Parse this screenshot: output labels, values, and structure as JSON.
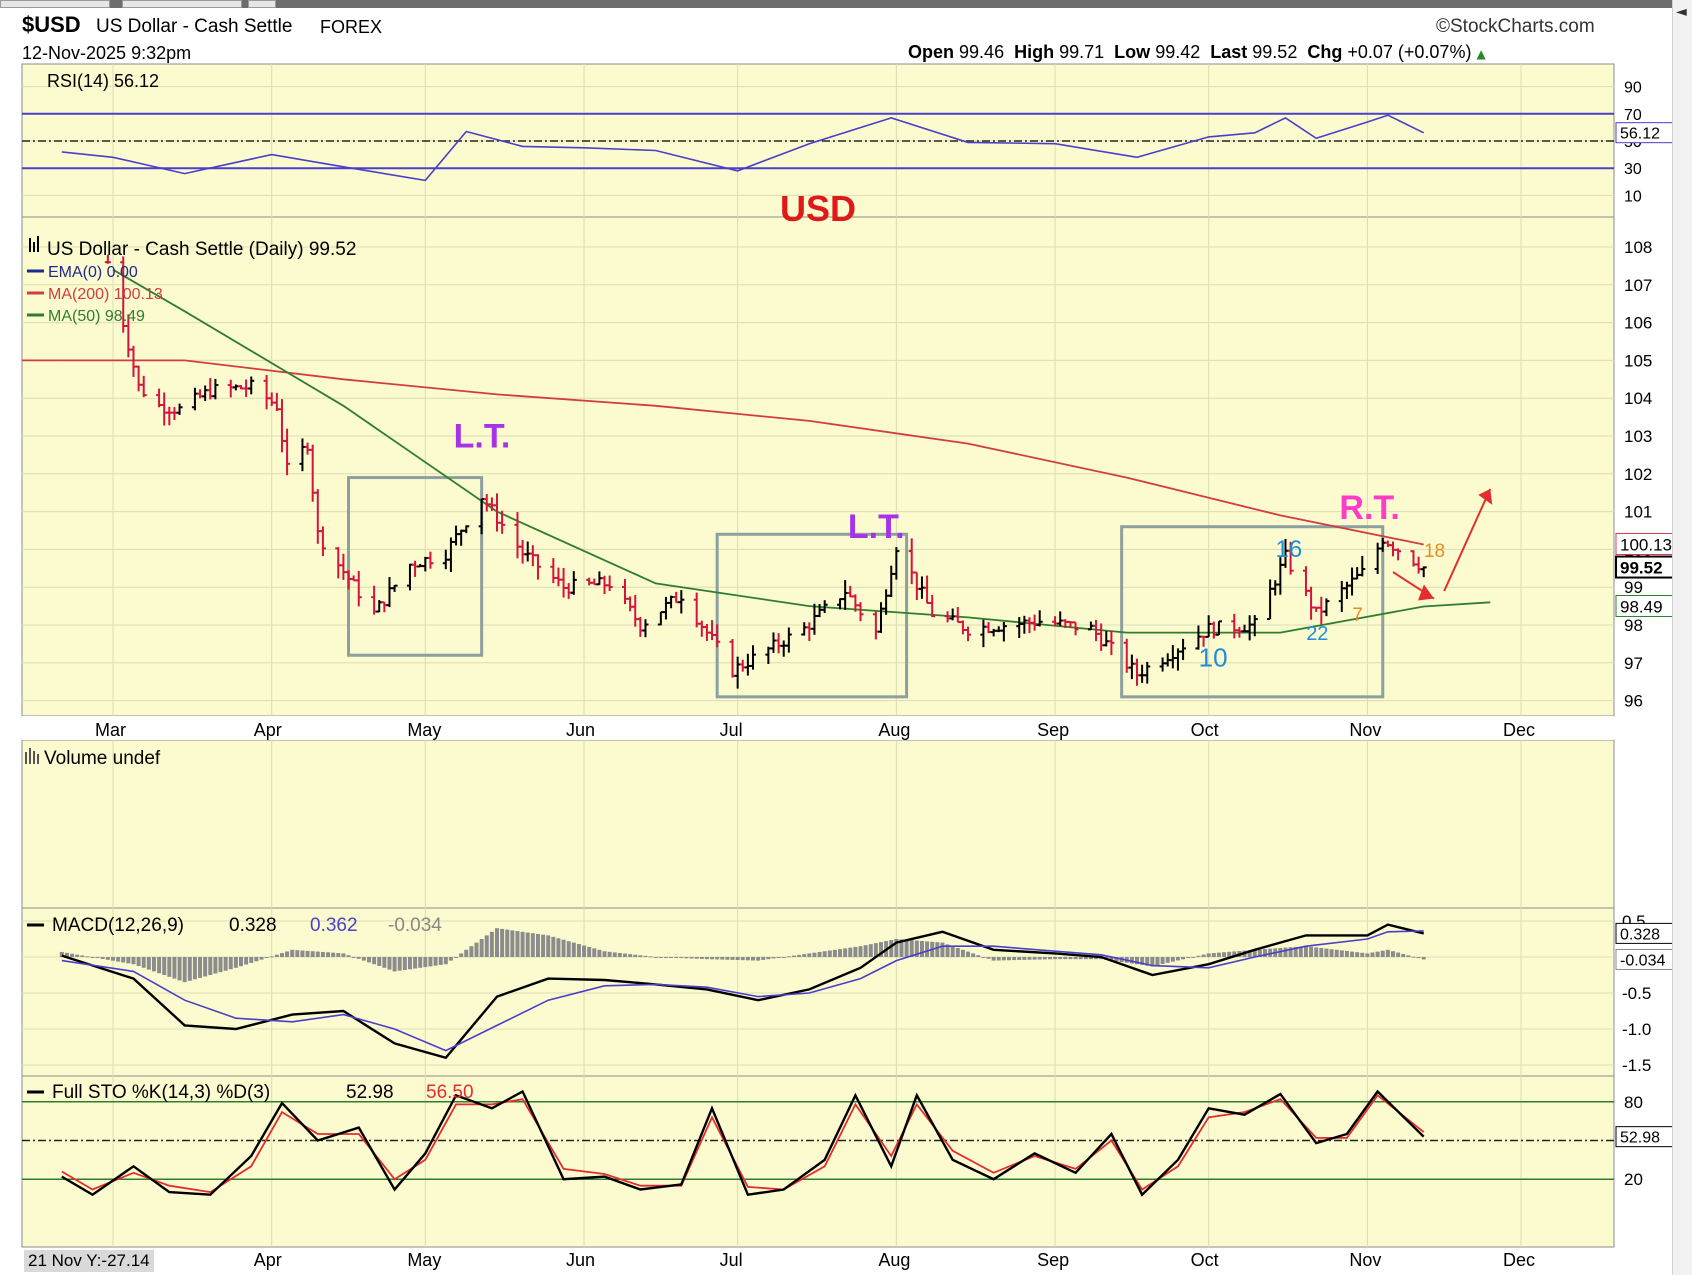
{
  "header": {
    "symbol": "$USD",
    "name": "US Dollar - Cash Settle",
    "market": "FOREX",
    "date": "12-Nov-2025 9:32pm",
    "brand": "StockCharts.com",
    "brand_symbol": "©",
    "quote": {
      "open_label": "Open",
      "open": "99.46",
      "high_label": "High",
      "high": "99.71",
      "low_label": "Low",
      "low": "99.42",
      "last_label": "Last",
      "last": "99.52",
      "chg_label": "Chg",
      "chg": "+0.07 (+0.07%)"
    },
    "footer_label": "21 Nov Y:-27.14"
  },
  "colors": {
    "panel_bg": "#fbfbcf",
    "grid": "#dcdcb4",
    "up_bar": "#000000",
    "down_bar": "#d4143c",
    "ma200": "#d23c46",
    "ma50": "#2f7d2f",
    "rsi": "#4a3fc8",
    "macd": "#000000",
    "signal": "#4a3fc8",
    "histogram": "#8c8c8c",
    "sto_k": "#000000",
    "sto_d": "#e62d2d",
    "annotation_purple": "#a832e6",
    "annotation_pink": "#ff3cc8",
    "annotation_blue": "#1e8cdc",
    "annotation_orange": "#f08a1e",
    "box": "#8ca0a0"
  },
  "chart_data": [
    {
      "type": "line",
      "panel": "rsi",
      "title": "RSI(14) 56.12",
      "ylim": [
        0,
        100
      ],
      "yticks": [
        "90",
        "70",
        "50",
        "30",
        "10"
      ],
      "reference_lines": [
        70,
        50,
        30
      ],
      "value_tag": "56.12",
      "annotation": "USD",
      "series": [
        {
          "name": "RSI(14)",
          "x": [
            "Feb 19",
            "Mar 1",
            "Mar 15",
            "Apr 1",
            "Apr 15",
            "May 1",
            "May 9",
            "May 20",
            "Jun 1",
            "Jun 15",
            "Jul 1",
            "Jul 15",
            "Jul 31",
            "Aug 15",
            "Sep 1",
            "Sep 17",
            "Oct 1",
            "Oct 10",
            "Oct 16",
            "Oct 22",
            "Nov 1",
            "Nov 5",
            "Nov 12"
          ],
          "values": [
            42,
            38,
            26,
            40,
            31,
            21,
            57,
            46,
            45,
            43,
            28,
            48,
            67,
            49,
            48,
            38,
            53,
            56,
            67,
            52,
            64,
            69,
            56
          ]
        }
      ]
    },
    {
      "type": "bar",
      "panel": "price",
      "title": "US Dollar - Cash Settle (Daily) 99.52",
      "ylim": [
        95.7,
        108.3
      ],
      "yticks": [
        "108",
        "107",
        "106",
        "105",
        "104",
        "103",
        "102",
        "101",
        "100",
        "99",
        "98",
        "97",
        "96"
      ],
      "xticks": [
        "Mar",
        "Apr",
        "May",
        "Jun",
        "Jul",
        "Aug",
        "Sep",
        "Oct",
        "Nov",
        "Dec"
      ],
      "legend": [
        "EMA(0) 0.00",
        "MA(200) 100.13",
        "MA(50) 98.49"
      ],
      "value_tags": [
        "100.13",
        "99.52",
        "98.49"
      ],
      "close_path": {
        "x": [
          "Feb 28",
          "Mar 3",
          "Mar 6",
          "Mar 10",
          "Mar 14",
          "Mar 20",
          "Mar 28",
          "Apr 2",
          "Apr 4",
          "Apr 8",
          "Apr 10",
          "Apr 14",
          "Apr 21",
          "Apr 28",
          "May 5",
          "May 12",
          "May 20",
          "May 28",
          "Jun 6",
          "Jun 12",
          "Jun 20",
          "Jun 30",
          "Jul 14",
          "Jul 22",
          "Jul 28",
          "Aug 1",
          "Aug 8",
          "Aug 15",
          "Aug 29",
          "Sep 8",
          "Sep 17",
          "Oct 1",
          "Oct 10",
          "Oct 16",
          "Oct 22",
          "Nov 1",
          "Nov 4",
          "Nov 12"
        ],
        "values": [
          107.6,
          106.0,
          104.3,
          103.8,
          103.7,
          104.2,
          104.3,
          103.8,
          102.1,
          102.8,
          100.4,
          99.6,
          98.3,
          99.6,
          99.9,
          101.4,
          99.9,
          99.0,
          99.1,
          98.0,
          98.8,
          96.8,
          97.9,
          98.9,
          97.8,
          100.1,
          98.3,
          97.9,
          98.1,
          97.9,
          96.7,
          97.9,
          98.0,
          99.8,
          98.3,
          99.5,
          100.3,
          99.52
        ]
      },
      "series": [
        {
          "name": "MA(200)",
          "x": [
            "Feb 19",
            "Mar 15",
            "Apr 15",
            "May 15",
            "Jun 15",
            "Jul 15",
            "Aug 15",
            "Sep 15",
            "Oct 15",
            "Nov 12"
          ],
          "values": [
            105.0,
            105.0,
            104.5,
            104.1,
            103.8,
            103.4,
            102.8,
            101.9,
            100.9,
            100.13
          ]
        },
        {
          "name": "MA(50)",
          "x": [
            "Mar 1",
            "Mar 15",
            "Apr 15",
            "May 15",
            "Jun 15",
            "Jul 15",
            "Aug 15",
            "Sep 15",
            "Oct 15",
            "Nov 12",
            "Nov 25"
          ],
          "values": [
            107.4,
            106.3,
            103.8,
            101.0,
            99.1,
            98.5,
            98.2,
            97.8,
            97.8,
            98.49,
            98.6
          ]
        }
      ],
      "annotations": [
        {
          "text": "L.T.",
          "x": "May 12",
          "y": 102.7
        },
        {
          "text": "L.T.",
          "x": "Jul 28",
          "y": 100.3
        },
        {
          "text": "R.T.",
          "x": "Nov 1",
          "y": 100.8
        },
        {
          "text": "16",
          "x": "Oct 16",
          "y": 99.8
        },
        {
          "text": "10",
          "x": "Oct 1",
          "y": 96.9
        },
        {
          "text": "22",
          "x": "Oct 22",
          "y": 97.6
        },
        {
          "text": "7",
          "x": "Oct 31",
          "y": 98.1
        },
        {
          "text": "18",
          "x": "Nov 14",
          "y": 99.8
        }
      ]
    },
    {
      "type": "bar",
      "panel": "volume",
      "title": "Volume undef",
      "series": []
    },
    {
      "type": "line",
      "panel": "macd",
      "title": "MACD(12,26,9)",
      "title_values": [
        "0.328",
        "0.362",
        "-0.034"
      ],
      "ylim": [
        -1.65,
        0.55
      ],
      "yticks": [
        "0.5",
        "0.0",
        "-0.5",
        "-1.0",
        "-1.5"
      ],
      "value_tags": [
        "0.328",
        "-0.034"
      ],
      "series": [
        {
          "name": "MACD",
          "x": [
            "Feb 19",
            "Mar 5",
            "Mar 15",
            "Mar 25",
            "Apr 5",
            "Apr 15",
            "Apr 25",
            "May 5",
            "May 15",
            "May 25",
            "Jun 5",
            "Jun 15",
            "Jun 25",
            "Jul 5",
            "Jul 15",
            "Jul 25",
            "Aug 1",
            "Aug 10",
            "Aug 20",
            "Sep 1",
            "Sep 10",
            "Sep 20",
            "Oct 1",
            "Oct 10",
            "Oct 20",
            "Nov 1",
            "Nov 5",
            "Nov 12"
          ],
          "values": [
            0.02,
            -0.3,
            -0.95,
            -1.0,
            -0.8,
            -0.75,
            -1.2,
            -1.4,
            -0.55,
            -0.3,
            -0.32,
            -0.38,
            -0.45,
            -0.6,
            -0.45,
            -0.15,
            0.2,
            0.35,
            0.1,
            0.05,
            0.0,
            -0.25,
            -0.1,
            0.1,
            0.3,
            0.3,
            0.45,
            0.328
          ]
        },
        {
          "name": "Signal",
          "x": [
            "Feb 19",
            "Mar 5",
            "Mar 15",
            "Mar 25",
            "Apr 5",
            "Apr 15",
            "Apr 25",
            "May 5",
            "May 15",
            "May 25",
            "Jun 5",
            "Jun 15",
            "Jun 25",
            "Jul 5",
            "Jul 15",
            "Jul 25",
            "Aug 1",
            "Aug 10",
            "Aug 20",
            "Sep 1",
            "Sep 10",
            "Sep 20",
            "Oct 1",
            "Oct 10",
            "Oct 20",
            "Nov 1",
            "Nov 5",
            "Nov 12"
          ],
          "values": [
            -0.05,
            -0.2,
            -0.6,
            -0.85,
            -0.9,
            -0.8,
            -1.0,
            -1.3,
            -0.95,
            -0.6,
            -0.4,
            -0.38,
            -0.42,
            -0.55,
            -0.5,
            -0.3,
            -0.05,
            0.15,
            0.15,
            0.08,
            0.03,
            -0.12,
            -0.15,
            0.0,
            0.15,
            0.25,
            0.35,
            0.362
          ]
        },
        {
          "name": "Histogram",
          "x": [
            "Feb 19",
            "Mar 5",
            "Mar 15",
            "Mar 25",
            "Apr 5",
            "Apr 15",
            "Apr 25",
            "May 5",
            "May 15",
            "May 25",
            "Jun 5",
            "Jun 15",
            "Jun 25",
            "Jul 5",
            "Jul 15",
            "Jul 25",
            "Aug 1",
            "Aug 10",
            "Aug 20",
            "Sep 1",
            "Sep 10",
            "Sep 20",
            "Oct 1",
            "Oct 10",
            "Oct 20",
            "Nov 1",
            "Nov 5",
            "Nov 12"
          ],
          "values": [
            0.07,
            -0.1,
            -0.35,
            -0.15,
            0.1,
            0.05,
            -0.2,
            -0.1,
            0.4,
            0.3,
            0.08,
            0.0,
            -0.03,
            -0.05,
            0.05,
            0.15,
            0.25,
            0.2,
            -0.05,
            -0.03,
            -0.03,
            -0.13,
            0.05,
            0.1,
            0.15,
            0.05,
            0.1,
            -0.034
          ]
        }
      ]
    },
    {
      "type": "line",
      "panel": "sto",
      "title": "Full STO %K(14,3) %D(3)",
      "title_values": [
        "52.98",
        "56.50"
      ],
      "ylim": [
        0,
        100
      ],
      "yticks": [
        "80",
        "50",
        "20"
      ],
      "reference_lines": [
        80,
        50,
        20
      ],
      "value_tag": "52.98",
      "xticks": [
        "Apr",
        "May",
        "Jun",
        "Jul",
        "Aug",
        "Sep",
        "Oct",
        "Nov",
        "Dec"
      ],
      "series": [
        {
          "name": "%K",
          "x": [
            "Feb 19",
            "Feb 25",
            "Mar 5",
            "Mar 12",
            "Mar 20",
            "Mar 28",
            "Apr 3",
            "Apr 10",
            "Apr 18",
            "Apr 25",
            "May 1",
            "May 7",
            "May 14",
            "May 20",
            "May 28",
            "Jun 5",
            "Jun 12",
            "Jun 20",
            "Jun 26",
            "Jul 3",
            "Jul 10",
            "Jul 18",
            "Jul 24",
            "Jul 31",
            "Aug 5",
            "Aug 12",
            "Aug 20",
            "Aug 28",
            "Sep 5",
            "Sep 12",
            "Sep 18",
            "Sep 25",
            "Oct 1",
            "Oct 8",
            "Oct 15",
            "Oct 22",
            "Oct 28",
            "Nov 3",
            "Nov 12"
          ],
          "values": [
            22,
            8,
            30,
            10,
            8,
            38,
            79,
            50,
            60,
            12,
            40,
            85,
            75,
            88,
            20,
            22,
            12,
            16,
            75,
            8,
            12,
            35,
            85,
            30,
            85,
            35,
            20,
            40,
            25,
            55,
            8,
            35,
            75,
            70,
            86,
            48,
            55,
            88,
            52.98
          ]
        },
        {
          "name": "%D",
          "x": [
            "Feb 19",
            "Feb 25",
            "Mar 5",
            "Mar 12",
            "Mar 20",
            "Mar 28",
            "Apr 3",
            "Apr 10",
            "Apr 18",
            "Apr 25",
            "May 1",
            "May 7",
            "May 14",
            "May 20",
            "May 28",
            "Jun 5",
            "Jun 12",
            "Jun 20",
            "Jun 26",
            "Jul 3",
            "Jul 10",
            "Jul 18",
            "Jul 24",
            "Jul 31",
            "Aug 5",
            "Aug 12",
            "Aug 20",
            "Aug 28",
            "Sep 5",
            "Sep 12",
            "Sep 18",
            "Sep 25",
            "Oct 1",
            "Oct 8",
            "Oct 15",
            "Oct 22",
            "Oct 28",
            "Nov 3",
            "Nov 12"
          ],
          "values": [
            26,
            12,
            25,
            15,
            10,
            30,
            72,
            55,
            55,
            20,
            35,
            78,
            78,
            82,
            28,
            24,
            15,
            15,
            68,
            14,
            12,
            30,
            78,
            38,
            78,
            42,
            25,
            38,
            28,
            50,
            12,
            30,
            68,
            72,
            82,
            52,
            52,
            85,
            56.5
          ]
        }
      ]
    }
  ]
}
